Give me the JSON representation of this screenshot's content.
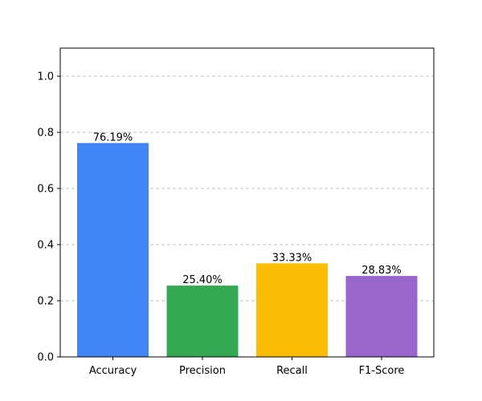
{
  "chart_data": {
    "type": "bar",
    "categories": [
      "Accuracy",
      "Precision",
      "Recall",
      "F1-Score"
    ],
    "values": [
      0.7619,
      0.254,
      0.3333,
      0.2883
    ],
    "data_labels": [
      "76.19%",
      "25.40%",
      "33.33%",
      "28.83%"
    ],
    "colors": [
      "#4285f4",
      "#34a853",
      "#fbbc05",
      "#9966cc"
    ],
    "ylim": [
      0,
      1.1
    ],
    "yticks": [
      0.0,
      0.2,
      0.4,
      0.6,
      0.8,
      1.0
    ],
    "ytick_labels": [
      "0.0",
      "0.2",
      "0.4",
      "0.6",
      "0.8",
      "1.0"
    ],
    "grid": "y-dashed",
    "title": "",
    "xlabel": "",
    "ylabel": ""
  }
}
